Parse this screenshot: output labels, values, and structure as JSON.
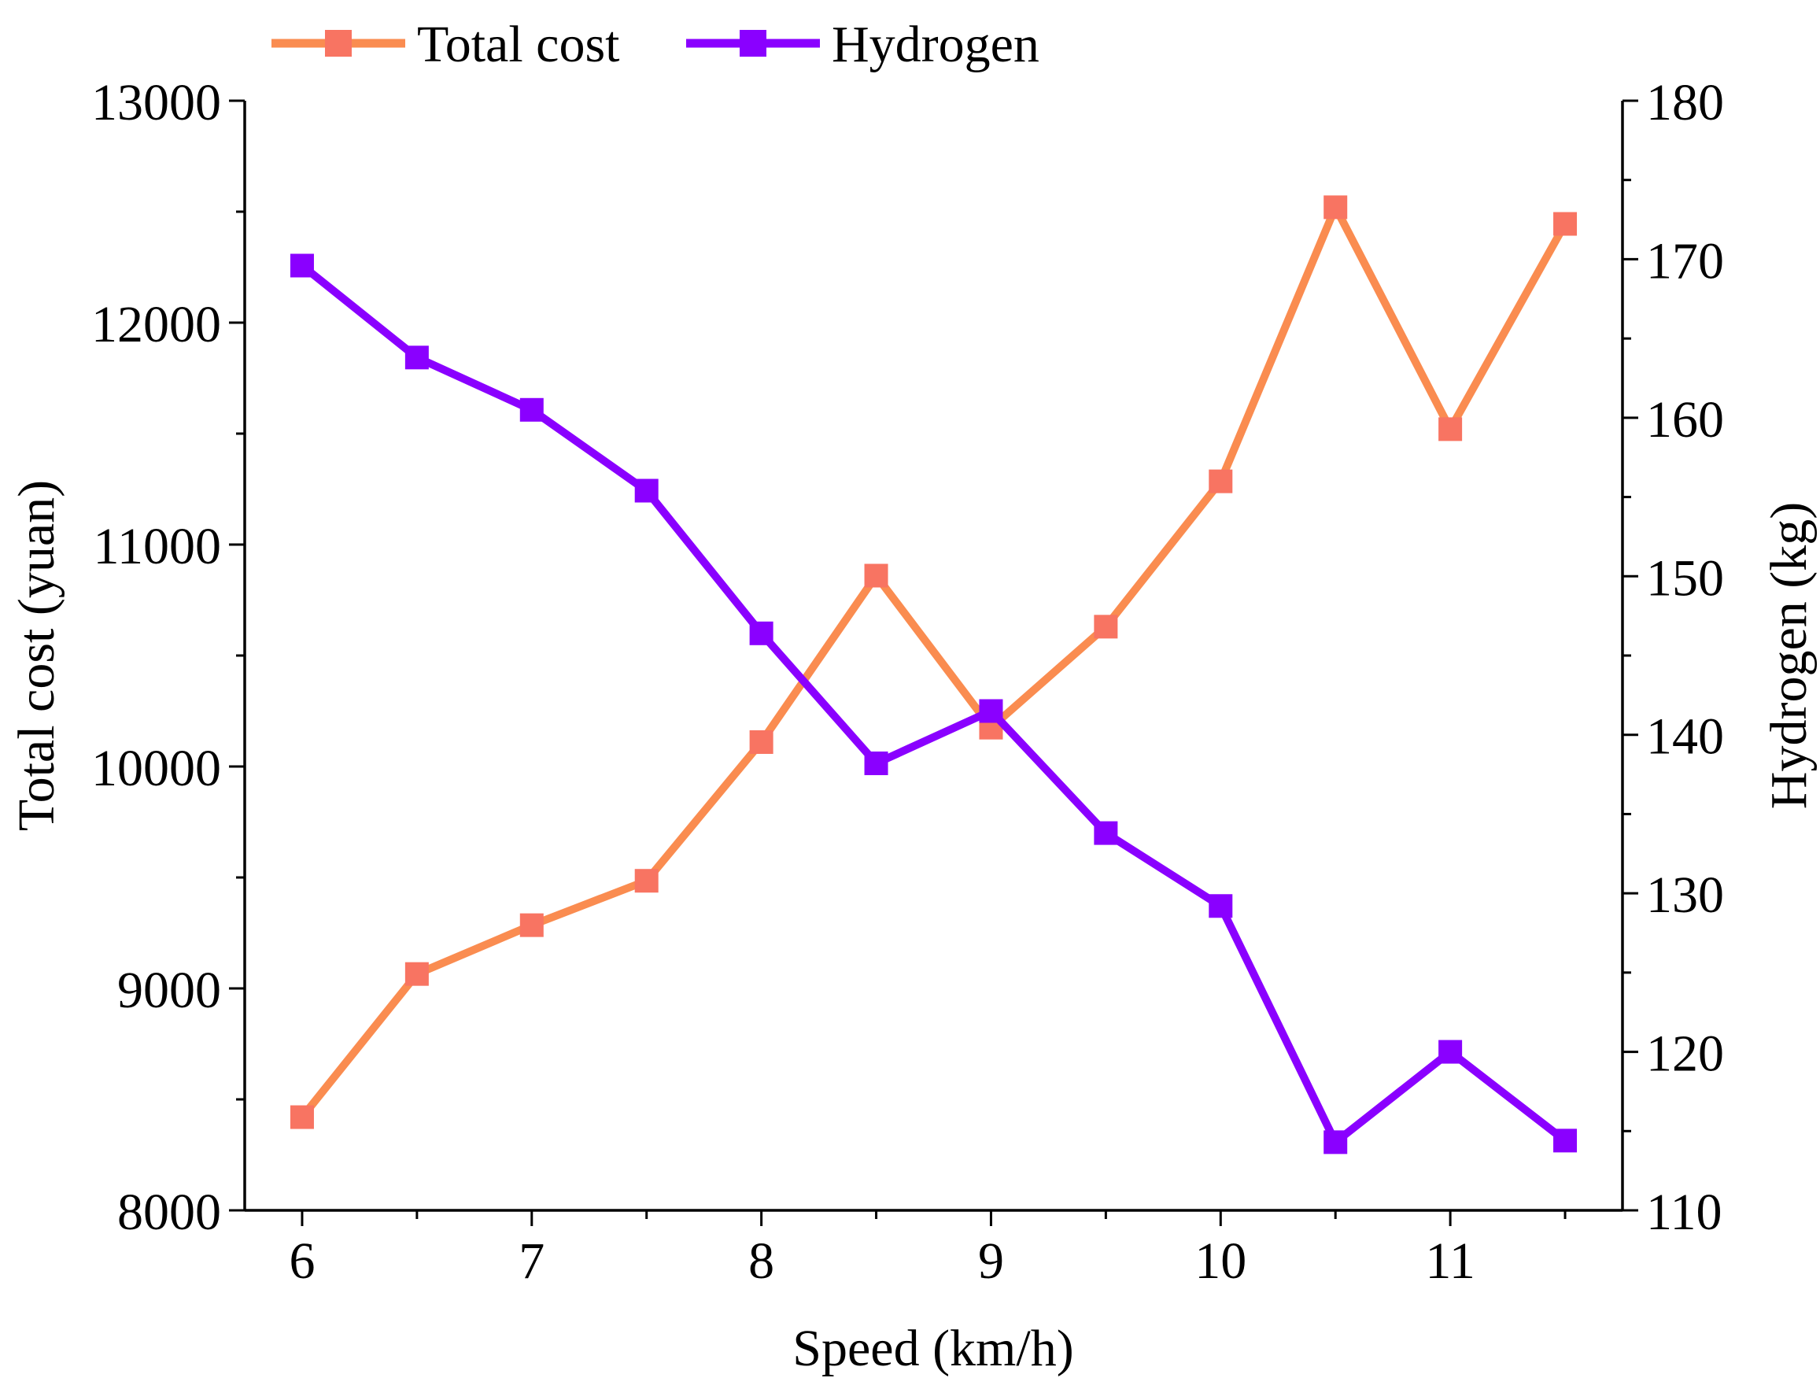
{
  "chart_data": {
    "type": "line",
    "xlabel": "Speed (km/h)",
    "ylabel": "Total cost (yuan)",
    "y2label": "Hydrogen (kg)",
    "xlim": [
      5.75,
      11.75
    ],
    "ylim": [
      8000,
      13000
    ],
    "y2lim": [
      110,
      180
    ],
    "x_ticks": [
      "6",
      "7",
      "8",
      "9",
      "10",
      "11"
    ],
    "y_ticks": [
      "8000",
      "9000",
      "10000",
      "11000",
      "12000",
      "13000"
    ],
    "y2_ticks": [
      "110",
      "120",
      "130",
      "140",
      "150",
      "160",
      "170",
      "180"
    ],
    "grid": false,
    "legend_position": "top",
    "x": [
      6,
      6.5,
      7,
      7.5,
      8,
      8.5,
      9,
      9.5,
      10,
      10.5,
      11,
      11.5
    ],
    "series": [
      {
        "name": "Total cost",
        "axis": "left",
        "color": "#FA8C50",
        "marker_color": "#F87462",
        "values": [
          8420,
          9065,
          9285,
          9485,
          10110,
          10860,
          10175,
          10630,
          11285,
          12520,
          11520,
          12445
        ]
      },
      {
        "name": "Hydrogen",
        "axis": "right",
        "color": "#8A00FF",
        "marker_color": "#8A00FF",
        "values": [
          169.6,
          163.8,
          160.5,
          155.4,
          146.4,
          138.2,
          141.5,
          133.8,
          129.2,
          114.3,
          120.0,
          114.4
        ]
      }
    ]
  }
}
